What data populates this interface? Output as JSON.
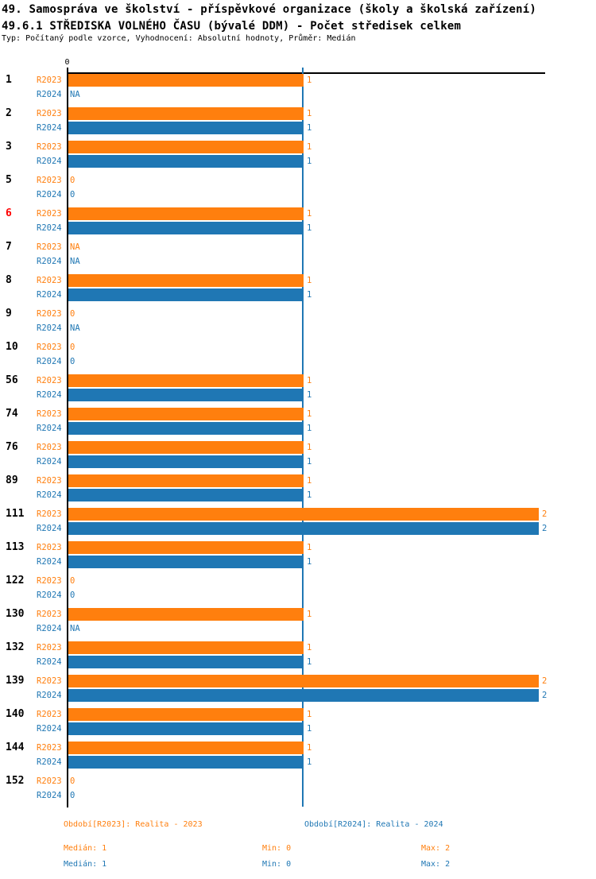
{
  "chart_data": {
    "type": "bar",
    "orientation": "horizontal",
    "title": "49. Samospráva ve školství - příspěvkové organizace (školy a školská zařízení)",
    "subtitle": "49.6.1 STŘEDISKA VOLNÉHO ČASU (bývalé DDM) - Počet středisek celkem",
    "note": "Typ: Počítaný podle vzorce, Vyhodnocení: Absolutní hodnoty, Průměr: Medián",
    "x_axis": {
      "min": 0,
      "max": 2,
      "origin_tick_label": "0",
      "reference_line_value": 1,
      "grid": false
    },
    "series": [
      "R2023",
      "R2024"
    ],
    "colors": {
      "bar_2023": "#FF7F0E",
      "bar_2024": "#1F77B4",
      "median_line": "#1F77B4",
      "highlight_group": "#FF0000",
      "axis": "#000000"
    },
    "groups": [
      {
        "id": "1",
        "highlight": false,
        "r2023": {
          "value": 1,
          "label": "1"
        },
        "r2024": {
          "value": null,
          "label": "NA"
        }
      },
      {
        "id": "2",
        "highlight": false,
        "r2023": {
          "value": 1,
          "label": "1"
        },
        "r2024": {
          "value": 1,
          "label": "1"
        }
      },
      {
        "id": "3",
        "highlight": false,
        "r2023": {
          "value": 1,
          "label": "1"
        },
        "r2024": {
          "value": 1,
          "label": "1"
        }
      },
      {
        "id": "5",
        "highlight": false,
        "r2023": {
          "value": 0,
          "label": "0"
        },
        "r2024": {
          "value": 0,
          "label": "0"
        }
      },
      {
        "id": "6",
        "highlight": true,
        "r2023": {
          "value": 1,
          "label": "1"
        },
        "r2024": {
          "value": 1,
          "label": "1"
        }
      },
      {
        "id": "7",
        "highlight": false,
        "r2023": {
          "value": null,
          "label": "NA"
        },
        "r2024": {
          "value": null,
          "label": "NA"
        }
      },
      {
        "id": "8",
        "highlight": false,
        "r2023": {
          "value": 1,
          "label": "1"
        },
        "r2024": {
          "value": 1,
          "label": "1"
        }
      },
      {
        "id": "9",
        "highlight": false,
        "r2023": {
          "value": 0,
          "label": "0"
        },
        "r2024": {
          "value": null,
          "label": "NA"
        }
      },
      {
        "id": "10",
        "highlight": false,
        "r2023": {
          "value": 0,
          "label": "0"
        },
        "r2024": {
          "value": 0,
          "label": "0"
        }
      },
      {
        "id": "56",
        "highlight": false,
        "r2023": {
          "value": 1,
          "label": "1"
        },
        "r2024": {
          "value": 1,
          "label": "1"
        }
      },
      {
        "id": "74",
        "highlight": false,
        "r2023": {
          "value": 1,
          "label": "1"
        },
        "r2024": {
          "value": 1,
          "label": "1"
        }
      },
      {
        "id": "76",
        "highlight": false,
        "r2023": {
          "value": 1,
          "label": "1"
        },
        "r2024": {
          "value": 1,
          "label": "1"
        }
      },
      {
        "id": "89",
        "highlight": false,
        "r2023": {
          "value": 1,
          "label": "1"
        },
        "r2024": {
          "value": 1,
          "label": "1"
        }
      },
      {
        "id": "111",
        "highlight": false,
        "r2023": {
          "value": 2,
          "label": "2"
        },
        "r2024": {
          "value": 2,
          "label": "2"
        }
      },
      {
        "id": "113",
        "highlight": false,
        "r2023": {
          "value": 1,
          "label": "1"
        },
        "r2024": {
          "value": 1,
          "label": "1"
        }
      },
      {
        "id": "122",
        "highlight": false,
        "r2023": {
          "value": 0,
          "label": "0"
        },
        "r2024": {
          "value": 0,
          "label": "0"
        }
      },
      {
        "id": "130",
        "highlight": false,
        "r2023": {
          "value": 1,
          "label": "1"
        },
        "r2024": {
          "value": null,
          "label": "NA"
        }
      },
      {
        "id": "132",
        "highlight": false,
        "r2023": {
          "value": 1,
          "label": "1"
        },
        "r2024": {
          "value": 1,
          "label": "1"
        }
      },
      {
        "id": "139",
        "highlight": false,
        "r2023": {
          "value": 2,
          "label": "2"
        },
        "r2024": {
          "value": 2,
          "label": "2"
        }
      },
      {
        "id": "140",
        "highlight": false,
        "r2023": {
          "value": 1,
          "label": "1"
        },
        "r2024": {
          "value": 1,
          "label": "1"
        }
      },
      {
        "id": "144",
        "highlight": false,
        "r2023": {
          "value": 1,
          "label": "1"
        },
        "r2024": {
          "value": 1,
          "label": "1"
        }
      },
      {
        "id": "152",
        "highlight": false,
        "r2023": {
          "value": 0,
          "label": "0"
        },
        "r2024": {
          "value": 0,
          "label": "0"
        }
      }
    ],
    "legend_position": "bottom"
  },
  "legend": {
    "r2023_period": "Období[R2023]: Realita - 2023",
    "r2024_period": "Období[R2024]: Realita - 2024",
    "r2023_stats": {
      "median": "Medián: 1",
      "min": "Min: 0",
      "max": "Max: 2"
    },
    "r2024_stats": {
      "median": "Medián: 1",
      "min": "Min: 0",
      "max": "Max: 2"
    }
  }
}
